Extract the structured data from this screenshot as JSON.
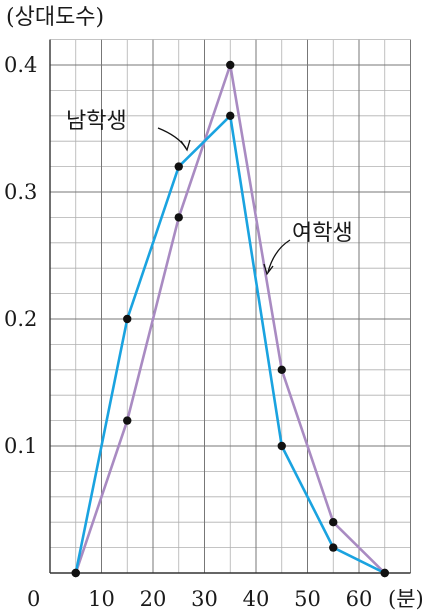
{
  "chart_data": {
    "type": "line",
    "ylabel": "(상대도수)",
    "xunit": "(분)",
    "origin_label": "0",
    "x_ticks": [
      10,
      20,
      30,
      40,
      50,
      60
    ],
    "x_tick_labels": [
      "10",
      "20",
      "30",
      "40",
      "50",
      "60"
    ],
    "y_ticks": [
      0.1,
      0.2,
      0.3,
      0.4
    ],
    "y_tick_labels": [
      "0.1",
      "0.2",
      "0.3",
      "0.4"
    ],
    "xlim": [
      0,
      70
    ],
    "ylim": [
      0,
      0.42
    ],
    "grid": true,
    "x_minor_step": 5,
    "y_minor_step": 0.02,
    "series": [
      {
        "name": "남학생",
        "color": "#1aa3e0",
        "x": [
          5,
          15,
          25,
          35,
          45,
          55,
          65
        ],
        "y": [
          0,
          0.2,
          0.32,
          0.36,
          0.1,
          0.02,
          0
        ]
      },
      {
        "name": "여학생",
        "color": "#a98bc2",
        "x": [
          5,
          15,
          25,
          35,
          45,
          55,
          65
        ],
        "y": [
          0,
          0.12,
          0.28,
          0.4,
          0.16,
          0.04,
          0
        ]
      }
    ],
    "annotations": [
      {
        "text": "남학생",
        "series": "남학생"
      },
      {
        "text": "여학생",
        "series": "여학생"
      }
    ]
  }
}
